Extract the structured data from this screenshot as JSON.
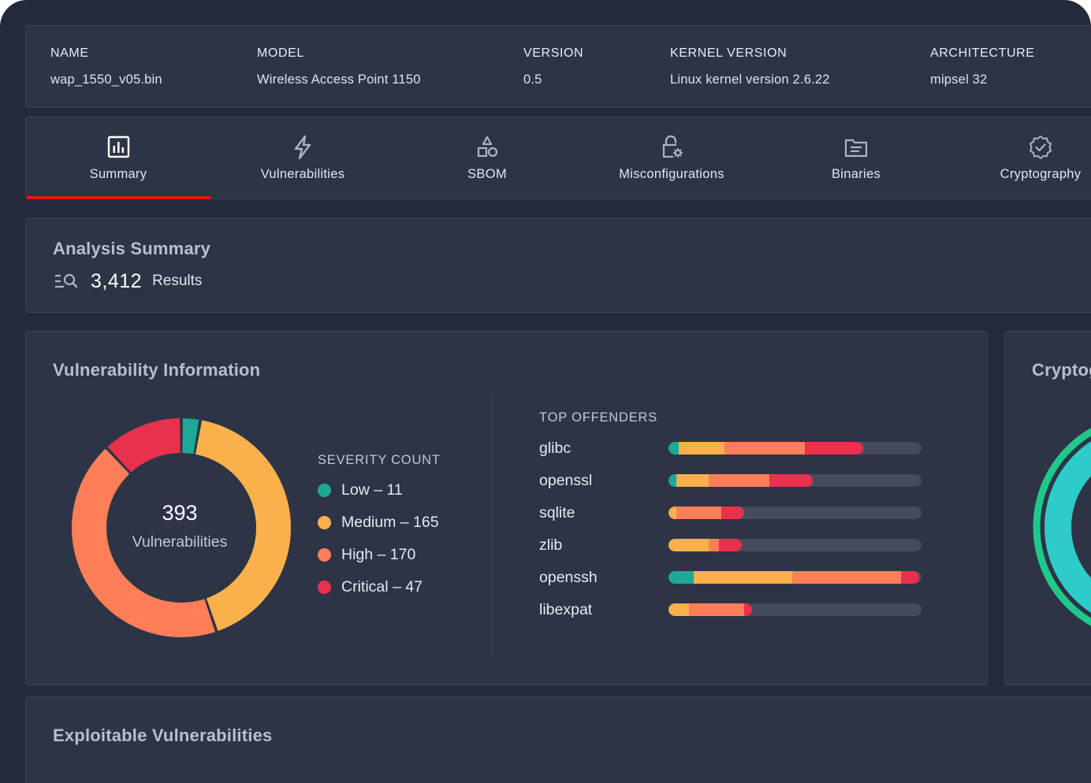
{
  "info": {
    "name_label": "NAME",
    "name_value": "wap_1550_v05.bin",
    "model_label": "MODEL",
    "model_value": "Wireless Access Point 1150",
    "version_label": "VERSION",
    "version_value": "0.5",
    "kernel_label": "KERNEL VERSION",
    "kernel_value": "Linux kernel version 2.6.22",
    "arch_label": "ARCHITECTURE",
    "arch_value": "mipsel 32"
  },
  "tabs": [
    {
      "label": "Summary",
      "icon": "bar-chart-icon",
      "active": true
    },
    {
      "label": "Vulnerabilities",
      "icon": "lightning-icon"
    },
    {
      "label": "SBOM",
      "icon": "shapes-icon"
    },
    {
      "label": "Misconfigurations",
      "icon": "lock-gear-icon"
    },
    {
      "label": "Binaries",
      "icon": "folder-icon"
    },
    {
      "label": "Cryptography",
      "icon": "badge-check-icon"
    }
  ],
  "summary": {
    "title": "Analysis Summary",
    "results_count": "3,412",
    "results_label": "Results",
    "icon": "list-search-icon"
  },
  "vuln": {
    "title": "Vulnerability Information",
    "total": "393",
    "total_label": "Vulnerabilities",
    "severity_title": "SEVERITY COUNT",
    "legend": [
      {
        "label": "Low – 11",
        "color": "#1ea896"
      },
      {
        "label": "Medium – 165",
        "color": "#fbb14b"
      },
      {
        "label": "High – 170",
        "color": "#fe7f57"
      },
      {
        "label": "Critical – 47",
        "color": "#e9304d"
      }
    ],
    "offenders_title": "TOP OFFENDERS",
    "offenders": [
      {
        "name": "glibc",
        "segments": [
          0.04,
          0.18,
          0.32,
          0.23
        ]
      },
      {
        "name": "openssl",
        "segments": [
          0.03,
          0.13,
          0.24,
          0.17
        ]
      },
      {
        "name": "sqlite",
        "segments": [
          0.0,
          0.03,
          0.18,
          0.09
        ]
      },
      {
        "name": "zlib",
        "segments": [
          0.0,
          0.16,
          0.04,
          0.09
        ]
      },
      {
        "name": "openssh",
        "segments": [
          0.1,
          0.39,
          0.43,
          0.07
        ]
      },
      {
        "name": "libexpat",
        "segments": [
          0.0,
          0.08,
          0.22,
          0.03
        ]
      }
    ]
  },
  "chart_data": {
    "type": "pie",
    "title": "Vulnerability Information",
    "categories": [
      "Low",
      "Medium",
      "High",
      "Critical"
    ],
    "values": [
      11,
      165,
      170,
      47
    ],
    "colors": [
      "#1ea896",
      "#fbb14b",
      "#fe7f57",
      "#e9304d"
    ],
    "center_label": "393 Vulnerabilities"
  },
  "crypto": {
    "title": "Cryptography"
  },
  "exploit": {
    "title": "Exploitable Vulnerabilities"
  }
}
